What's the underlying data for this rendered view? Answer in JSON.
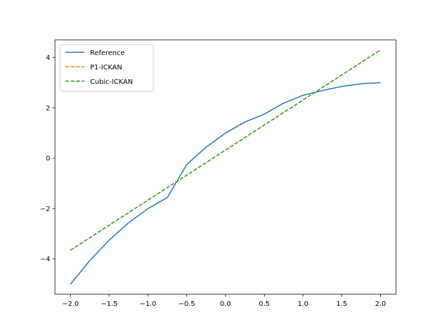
{
  "chart_data": {
    "type": "line",
    "title": "",
    "xlabel": "",
    "ylabel": "",
    "xlim": [
      -2.2,
      2.2
    ],
    "ylim": [
      -5.4,
      4.7
    ],
    "grid": false,
    "legend_position": "top-left",
    "x_ticks": [
      -2.0,
      -1.5,
      -1.0,
      -0.5,
      0.0,
      0.5,
      1.0,
      1.5,
      2.0
    ],
    "x_tick_labels": [
      "−2.0",
      "−1.5",
      "−1.0",
      "−0.5",
      "0.0",
      "0.5",
      "1.0",
      "1.5",
      "2.0"
    ],
    "y_ticks": [
      -4,
      -2,
      0,
      2,
      4
    ],
    "y_tick_labels": [
      "−4",
      "−2",
      "0",
      "2",
      "4"
    ],
    "series": [
      {
        "name": "Reference",
        "color": "#1f77b4",
        "style": "solid",
        "x": [
          -2.0,
          -1.75,
          -1.5,
          -1.25,
          -1.0,
          -0.75,
          -0.5,
          -0.25,
          0.0,
          0.25,
          0.5,
          0.75,
          1.0,
          1.25,
          1.5,
          1.75,
          2.0
        ],
        "y": [
          -5.0,
          -4.06,
          -3.25,
          -2.56,
          -2.0,
          -1.56,
          -0.25,
          0.44,
          1.0,
          1.44,
          1.75,
          2.19,
          2.5,
          2.69,
          2.85,
          2.96,
          3.0
        ]
      },
      {
        "name": "P1-ICKAN",
        "color": "#ff7f0e",
        "style": "dashed",
        "x": [
          -2.0,
          2.0
        ],
        "y": [
          -3.65,
          4.3
        ]
      },
      {
        "name": "Cubic-ICKAN",
        "color": "#2ca02c",
        "style": "dashed",
        "x": [
          -2.0,
          2.0
        ],
        "y": [
          -3.65,
          4.3
        ]
      }
    ]
  }
}
